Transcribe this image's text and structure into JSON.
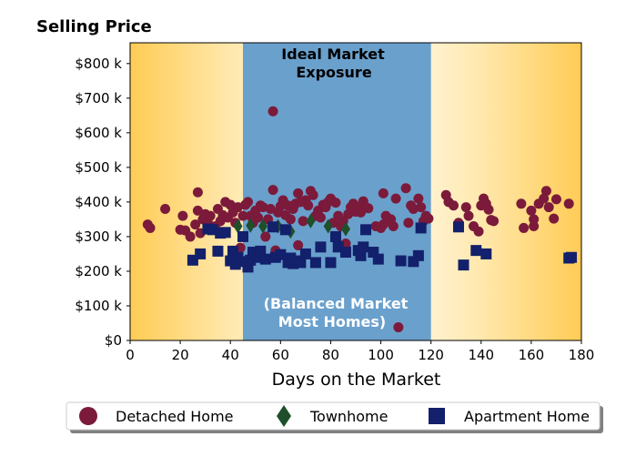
{
  "chart_data": {
    "type": "scatter",
    "title": "Selling Price",
    "xlabel": "Days on the Market",
    "ylabel": "",
    "xlim": [
      0,
      180
    ],
    "ylim": [
      0,
      860000
    ],
    "xticks": [
      0,
      20,
      40,
      60,
      80,
      100,
      120,
      140,
      160,
      180
    ],
    "yticks": [
      0,
      100000,
      200000,
      300000,
      400000,
      500000,
      600000,
      700000,
      800000
    ],
    "ytick_labels": [
      "$0",
      "$100 k",
      "$200 k",
      "$300 k",
      "$400 k",
      "$500 k",
      "$600 k",
      "$700 k",
      "$800 k"
    ],
    "grid": false,
    "shaded_region": {
      "x_start": 45,
      "x_end": 120,
      "color": "#6aa0cc",
      "label_top": [
        "Ideal Market",
        "Exposure"
      ],
      "label_bottom": [
        "(Balanced Market",
        "Most Homes)"
      ]
    },
    "background_gradient": {
      "edge_color": "#ffcc55",
      "center_color": "#ffffff"
    },
    "legend": {
      "position": "below",
      "entries": [
        "Detached Home",
        "Townhome",
        "Apartment Home"
      ]
    },
    "series": [
      {
        "name": "Detached Home",
        "marker": "circle",
        "color": "#7b1a3a",
        "points": [
          [
            7,
            335
          ],
          [
            8,
            325
          ],
          [
            14,
            380
          ],
          [
            20,
            320
          ],
          [
            21,
            360
          ],
          [
            22,
            318
          ],
          [
            24,
            300
          ],
          [
            26,
            335
          ],
          [
            27,
            428
          ],
          [
            27,
            375
          ],
          [
            28,
            310
          ],
          [
            29,
            350
          ],
          [
            30,
            365
          ],
          [
            31,
            340
          ],
          [
            32,
            360
          ],
          [
            34,
            330
          ],
          [
            35,
            380
          ],
          [
            36,
            345
          ],
          [
            37,
            362
          ],
          [
            38,
            400
          ],
          [
            39,
            355
          ],
          [
            40,
            392
          ],
          [
            41,
            370
          ],
          [
            42,
            340
          ],
          [
            43,
            385
          ],
          [
            44,
            268
          ],
          [
            45,
            360
          ],
          [
            46,
            392
          ],
          [
            47,
            400
          ],
          [
            48,
            360
          ],
          [
            49,
            340
          ],
          [
            50,
            375
          ],
          [
            51,
            355
          ],
          [
            52,
            390
          ],
          [
            53,
            385
          ],
          [
            54,
            300
          ],
          [
            55,
            350
          ],
          [
            56,
            380
          ],
          [
            57,
            435
          ],
          [
            57,
            662
          ],
          [
            58,
            260
          ],
          [
            59,
            370
          ],
          [
            60,
            388
          ],
          [
            61,
            405
          ],
          [
            62,
            362
          ],
          [
            63,
            390
          ],
          [
            64,
            350
          ],
          [
            65,
            380
          ],
          [
            66,
            395
          ],
          [
            67,
            275
          ],
          [
            67,
            425
          ],
          [
            68,
            400
          ],
          [
            69,
            345
          ],
          [
            70,
            405
          ],
          [
            71,
            390
          ],
          [
            72,
            432
          ],
          [
            73,
            420
          ],
          [
            74,
            360
          ],
          [
            75,
            375
          ],
          [
            76,
            355
          ],
          [
            77,
            392
          ],
          [
            78,
            385
          ],
          [
            79,
            400
          ],
          [
            80,
            410
          ],
          [
            81,
            340
          ],
          [
            82,
            398
          ],
          [
            83,
            360
          ],
          [
            84,
            330
          ],
          [
            85,
            345
          ],
          [
            86,
            268
          ],
          [
            86,
            280
          ],
          [
            87,
            365
          ],
          [
            88,
            385
          ],
          [
            89,
            395
          ],
          [
            90,
            372
          ],
          [
            91,
            385
          ],
          [
            92,
            370
          ],
          [
            93,
            402
          ],
          [
            94,
            385
          ],
          [
            95,
            382
          ],
          [
            98,
            330
          ],
          [
            100,
            325
          ],
          [
            101,
            425
          ],
          [
            101,
            335
          ],
          [
            102,
            360
          ],
          [
            103,
            345
          ],
          [
            104,
            350
          ],
          [
            105,
            330
          ],
          [
            106,
            410
          ],
          [
            107,
            38
          ],
          [
            110,
            440
          ],
          [
            111,
            340
          ],
          [
            112,
            390
          ],
          [
            113,
            380
          ],
          [
            115,
            410
          ],
          [
            116,
            385
          ],
          [
            117,
            345
          ],
          [
            118,
            360
          ],
          [
            119,
            352
          ],
          [
            126,
            420
          ],
          [
            127,
            400
          ],
          [
            129,
            390
          ],
          [
            131,
            340
          ],
          [
            134,
            385
          ],
          [
            135,
            360
          ],
          [
            137,
            330
          ],
          [
            139,
            315
          ],
          [
            140,
            390
          ],
          [
            141,
            410
          ],
          [
            142,
            395
          ],
          [
            143,
            378
          ],
          [
            144,
            348
          ],
          [
            145,
            345
          ],
          [
            156,
            395
          ],
          [
            157,
            325
          ],
          [
            160,
            375
          ],
          [
            161,
            330
          ],
          [
            161,
            350
          ],
          [
            163,
            395
          ],
          [
            165,
            410
          ],
          [
            166,
            432
          ],
          [
            167,
            385
          ],
          [
            169,
            352
          ],
          [
            170,
            408
          ],
          [
            175,
            395
          ]
        ]
      },
      {
        "name": "Townhome",
        "marker": "diamond",
        "color": "#1f4f2b",
        "points": [
          [
            43,
            330
          ],
          [
            48,
            332
          ],
          [
            53,
            330
          ],
          [
            59,
            330
          ],
          [
            64,
            315
          ],
          [
            72,
            345
          ],
          [
            79,
            330
          ],
          [
            86,
            322
          ]
        ]
      },
      {
        "name": "Apartment Home",
        "marker": "square",
        "color": "#13206b",
        "points": [
          [
            25,
            232
          ],
          [
            28,
            250
          ],
          [
            31,
            322
          ],
          [
            33,
            320
          ],
          [
            35,
            258
          ],
          [
            36,
            310
          ],
          [
            38,
            312
          ],
          [
            40,
            230
          ],
          [
            41,
            258
          ],
          [
            42,
            220
          ],
          [
            43,
            240
          ],
          [
            45,
            300
          ],
          [
            46,
            228
          ],
          [
            47,
            212
          ],
          [
            48,
            232
          ],
          [
            49,
            255
          ],
          [
            51,
            240
          ],
          [
            52,
            258
          ],
          [
            54,
            235
          ],
          [
            57,
            328
          ],
          [
            58,
            240
          ],
          [
            60,
            248
          ],
          [
            62,
            320
          ],
          [
            63,
            225
          ],
          [
            64,
            238
          ],
          [
            65,
            222
          ],
          [
            67,
            230
          ],
          [
            68,
            225
          ],
          [
            70,
            250
          ],
          [
            74,
            225
          ],
          [
            76,
            270
          ],
          [
            80,
            225
          ],
          [
            82,
            300
          ],
          [
            83,
            270
          ],
          [
            86,
            255
          ],
          [
            91,
            260
          ],
          [
            92,
            245
          ],
          [
            93,
            270
          ],
          [
            94,
            320
          ],
          [
            97,
            255
          ],
          [
            99,
            235
          ],
          [
            108,
            230
          ],
          [
            113,
            228
          ],
          [
            115,
            245
          ],
          [
            116,
            325
          ],
          [
            131,
            328
          ],
          [
            133,
            218
          ],
          [
            138,
            260
          ],
          [
            142,
            250
          ],
          [
            175,
            238
          ],
          [
            176,
            240
          ]
        ]
      }
    ]
  }
}
